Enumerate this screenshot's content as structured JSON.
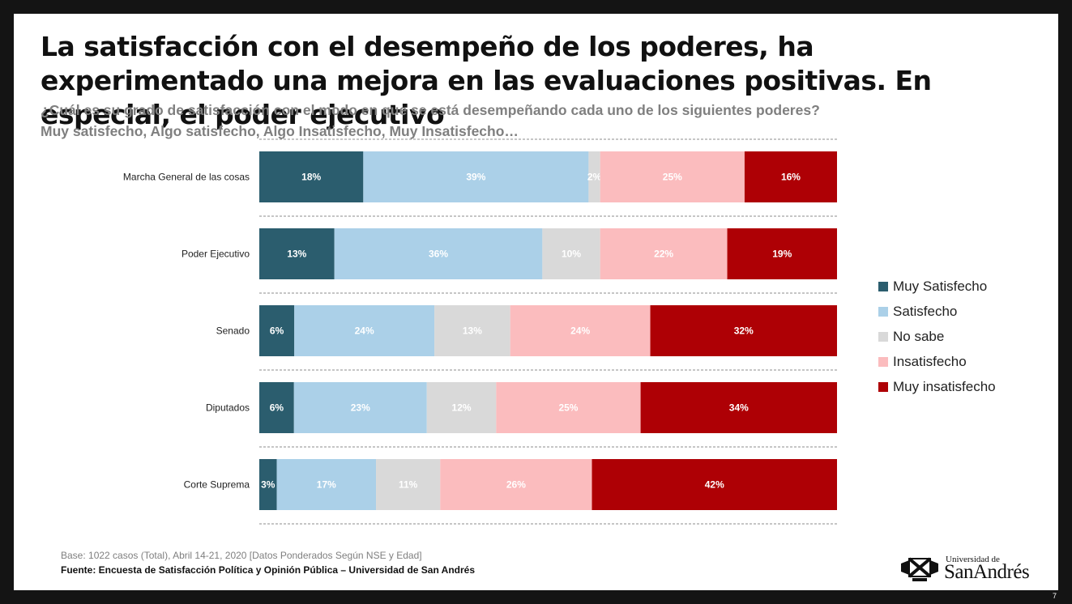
{
  "title": "La satisfacción con el desempeño de los poderes, ha experimentado una mejora en las evaluaciones positivas. En especial, el poder ejecutivo",
  "subtitle_question": "¿Cuál es su grado de satisfacción con el modo en que se está desempeñando cada uno de los siguientes poderes?",
  "subtitle_options": "Muy satisfecho, Algo satisfecho, Algo Insatisfecho, Muy Insatisfecho…",
  "chart_data": {
    "type": "bar",
    "orientation": "horizontal",
    "stacked": true,
    "categories": [
      "Marcha General de las cosas",
      "Poder Ejecutivo",
      "Senado",
      "Diputados",
      "Corte Suprema"
    ],
    "series": [
      {
        "name": "Muy Satisfecho",
        "color": "#2b5d6e",
        "values": [
          18,
          13,
          6,
          6,
          3
        ],
        "labels": [
          "18%",
          "13%",
          "6%",
          "6%",
          "3%"
        ]
      },
      {
        "name": "Satisfecho",
        "color": "#abd0e8",
        "values": [
          39,
          36,
          24,
          23,
          17
        ],
        "labels": [
          "39%",
          "36%",
          "24%",
          "23%",
          "17%"
        ]
      },
      {
        "name": "No sabe",
        "color": "#d9d9d9",
        "values": [
          2,
          10,
          13,
          12,
          11
        ],
        "labels": [
          "2%",
          "10%",
          "13%",
          "12%",
          "11%"
        ]
      },
      {
        "name": "Insatisfecho",
        "color": "#fbbcbe",
        "values": [
          25,
          22,
          24,
          25,
          26
        ],
        "labels": [
          "25%",
          "22%",
          "24%",
          "25%",
          "26%"
        ]
      },
      {
        "name": "Muy insatisfecho",
        "color": "#ae0005",
        "values": [
          16,
          19,
          32,
          34,
          42
        ],
        "labels": [
          "16%",
          "19%",
          "32%",
          "34%",
          "42%"
        ]
      }
    ],
    "legend_position": "right",
    "grid": false
  },
  "footer": {
    "base": "Base: 1022 casos (Total), Abril 14-21, 2020 [Datos Ponderados Según NSE y Edad]",
    "source": "Fuente: Encuesta de Satisfacción Política y Opinión Pública – Universidad de San Andrés"
  },
  "logo": {
    "small_text": "Universidad de",
    "big_text": "SanAndrés"
  },
  "page_number": "7"
}
